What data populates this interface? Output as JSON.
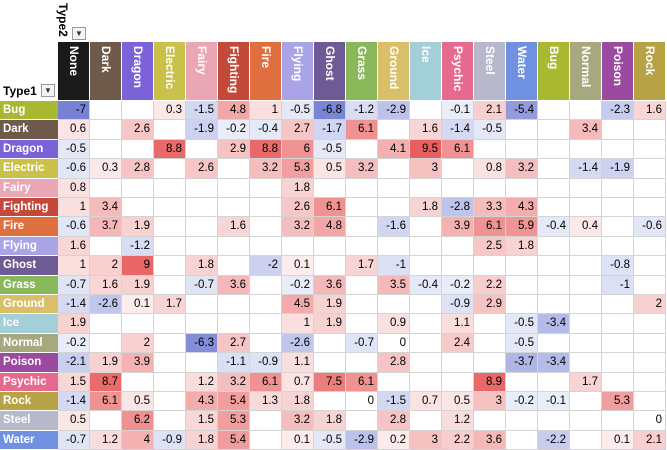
{
  "pivot": {
    "column_field": "Type2",
    "row_field": "Type1",
    "filter_icon": "dropdown-arrow-icon",
    "columns": [
      "None",
      "Dark",
      "Dragon",
      "Electric",
      "Fairy",
      "Fighting",
      "Fire",
      "Flying",
      "Ghost",
      "Grass",
      "Ground",
      "Ice",
      "Psychic",
      "Steel",
      "Water",
      "Bug",
      "Normal",
      "Poison",
      "Rock"
    ],
    "header_colors": {
      "None": "#1a1a1a",
      "Dark": "#6e5a4a",
      "Dragon": "#7b62d9",
      "Electric": "#c9c14a",
      "Fairy": "#e9a7b6",
      "Fighting": "#c34a3a",
      "Fire": "#e06f3f",
      "Flying": "#a8a4e6",
      "Ghost": "#6e5a94",
      "Grass": "#89b85a",
      "Ground": "#d9bf6a",
      "Ice": "#a3cfd9",
      "Psychic": "#e66a8f",
      "Steel": "#b8b8cc",
      "Water": "#6f91e0",
      "Bug": "#a8b830",
      "Normal": "#a8a87f",
      "Poison": "#9a4aa0",
      "Rock": "#b8a246"
    },
    "header_text_colors": {
      "None": "#ffffff",
      "Dark": "#ffffff",
      "Dragon": "#ffffff",
      "Electric": "#ffffff",
      "Fairy": "#ffffff",
      "Fighting": "#ffffff",
      "Fire": "#ffffff",
      "Flying": "#ffffff",
      "Ghost": "#ffffff",
      "Grass": "#ffffff",
      "Ground": "#ffffff",
      "Ice": "#ffffff",
      "Psychic": "#ffffff",
      "Steel": "#ffffff",
      "Water": "#ffffff",
      "Bug": "#ffffff",
      "Normal": "#ffffff",
      "Poison": "#ffffff",
      "Rock": "#ffffff"
    },
    "rows": [
      {
        "label": "Bug",
        "color": "#a8b830",
        "text": "#ffffff",
        "values": [
          "-7",
          "",
          "",
          "0.3",
          "-1.5",
          "4.8",
          "1",
          "-0.5",
          "-6.8",
          "-1.2",
          "-2.9",
          "",
          "-0.1",
          "2.1",
          "-5.4",
          "",
          "",
          "-2.3",
          "1.6"
        ]
      },
      {
        "label": "Dark",
        "color": "#6e5a4a",
        "text": "#ffffff",
        "values": [
          "0.6",
          "",
          "2.6",
          "",
          "-1.9",
          "-0.2",
          "-0.4",
          "2.7",
          "-1.7",
          "6.1",
          "",
          "1.6",
          "-1.4",
          "-0.5",
          "",
          "",
          "3.4",
          "",
          ""
        ]
      },
      {
        "label": "Dragon",
        "color": "#7b62d9",
        "text": "#ffffff",
        "values": [
          "-0.5",
          "",
          "",
          "8.8",
          "",
          "2.9",
          "8.8",
          "6",
          "-0.5",
          "",
          "4.1",
          "9.5",
          "6.1",
          "",
          "",
          "",
          "",
          "",
          ""
        ]
      },
      {
        "label": "Electric",
        "color": "#c9c14a",
        "text": "#ffffff",
        "values": [
          "-0.6",
          "0.3",
          "2.8",
          "",
          "2.6",
          "",
          "3.2",
          "5.3",
          "0.5",
          "3.2",
          "",
          "3",
          "",
          "0.8",
          "3.2",
          "",
          "-1.4",
          "-1.9",
          ""
        ]
      },
      {
        "label": "Fairy",
        "color": "#e9a7b6",
        "text": "#ffffff",
        "values": [
          "0.8",
          "",
          "",
          "",
          "",
          "",
          "",
          "1.8",
          "",
          "",
          "",
          "",
          "",
          "",
          "",
          "",
          "",
          "",
          ""
        ]
      },
      {
        "label": "Fighting",
        "color": "#c34a3a",
        "text": "#ffffff",
        "values": [
          "1",
          "3.4",
          "",
          "",
          "",
          "",
          "",
          "2.6",
          "6.1",
          "",
          "",
          "1.8",
          "-2.8",
          "3.3",
          "4.3",
          "",
          "",
          "",
          ""
        ]
      },
      {
        "label": "Fire",
        "color": "#e06f3f",
        "text": "#ffffff",
        "values": [
          "-0.6",
          "3.7",
          "1.9",
          "",
          "",
          "1.6",
          "",
          "3.2",
          "4.8",
          "",
          "-1.6",
          "",
          "3.9",
          "6.1",
          "5.9",
          "-0.4",
          "0.4",
          "",
          "-0.6"
        ]
      },
      {
        "label": "Flying",
        "color": "#a8a4e6",
        "text": "#ffffff",
        "values": [
          "1.6",
          "",
          "-1.2",
          "",
          "",
          "",
          "",
          "",
          "",
          "",
          "",
          "",
          "",
          "2.5",
          "1.8",
          "",
          "",
          "",
          ""
        ]
      },
      {
        "label": "Ghost",
        "color": "#6e5a94",
        "text": "#ffffff",
        "values": [
          "1",
          "2",
          "9",
          "",
          "1.8",
          "",
          "-2",
          "0.1",
          "",
          "1.7",
          "-1",
          "",
          "",
          "",
          "",
          "",
          "",
          "-0.8",
          ""
        ]
      },
      {
        "label": "Grass",
        "color": "#89b85a",
        "text": "#ffffff",
        "values": [
          "-0.7",
          "1.6",
          "1.9",
          "",
          "-0.7",
          "3.6",
          "",
          "-0.2",
          "3.6",
          "",
          "3.5",
          "-0.4",
          "-0.2",
          "2.2",
          "",
          "",
          "",
          "-1",
          ""
        ]
      },
      {
        "label": "Ground",
        "color": "#d9bf6a",
        "text": "#ffffff",
        "values": [
          "-1.4",
          "-2.6",
          "0.1",
          "1.7",
          "",
          "",
          "",
          "4.5",
          "1.9",
          "",
          "",
          "",
          "-0.9",
          "2.9",
          "",
          "",
          "",
          "",
          "2"
        ]
      },
      {
        "label": "Ice",
        "color": "#a3cfd9",
        "text": "#ffffff",
        "values": [
          "1.9",
          "",
          "",
          "",
          "",
          "",
          "",
          "1",
          "1.9",
          "",
          "0.9",
          "",
          "1.1",
          "",
          "-0.5",
          "-3.4",
          "",
          "",
          ""
        ]
      },
      {
        "label": "Normal",
        "color": "#a8a87f",
        "text": "#ffffff",
        "values": [
          "-0.2",
          "",
          "2",
          "",
          "-6.3",
          "2.7",
          "",
          "-2.6",
          "",
          "-0.7",
          "0",
          "",
          "2.4",
          "",
          "-0.5",
          "",
          "",
          "",
          ""
        ]
      },
      {
        "label": "Poison",
        "color": "#9a4aa0",
        "text": "#ffffff",
        "values": [
          "-2.1",
          "1.9",
          "3.9",
          "",
          "",
          "-1.1",
          "-0.9",
          "1.1",
          "",
          "",
          "2.8",
          "",
          "",
          "",
          "-3.7",
          "-3.4",
          "",
          "",
          ""
        ]
      },
      {
        "label": "Psychic",
        "color": "#e66a8f",
        "text": "#ffffff",
        "values": [
          "1.5",
          "8.7",
          "",
          "",
          "1.2",
          "3.2",
          "6.1",
          "0.7",
          "7.5",
          "6.1",
          "",
          "",
          "",
          "8.9",
          "",
          "",
          "1.7",
          "",
          ""
        ]
      },
      {
        "label": "Rock",
        "color": "#b8a246",
        "text": "#ffffff",
        "values": [
          "-1.4",
          "6.1",
          "0.5",
          "",
          "4.3",
          "5.4",
          "1.3",
          "1.8",
          "",
          "0",
          "-1.5",
          "0.7",
          "0.5",
          "3",
          "-0.2",
          "-0.1",
          "",
          "5.3",
          ""
        ]
      },
      {
        "label": "Steel",
        "color": "#b8b8cc",
        "text": "#ffffff",
        "values": [
          "0.5",
          "",
          "6.2",
          "",
          "1.5",
          "5.3",
          "",
          "3.2",
          "1.8",
          "",
          "2.8",
          "",
          "1.2",
          "",
          "",
          "",
          "",
          "",
          "0"
        ]
      },
      {
        "label": "Water",
        "color": "#6f91e0",
        "text": "#ffffff",
        "values": [
          "-0.7",
          "1.2",
          "4",
          "-0.9",
          "1.8",
          "5.4",
          "",
          "0.1",
          "-0.5",
          "-2.9",
          "0.2",
          "3",
          "2.2",
          "3.6",
          "",
          "-2.2",
          "",
          "0.1",
          "2.1"
        ]
      }
    ]
  }
}
